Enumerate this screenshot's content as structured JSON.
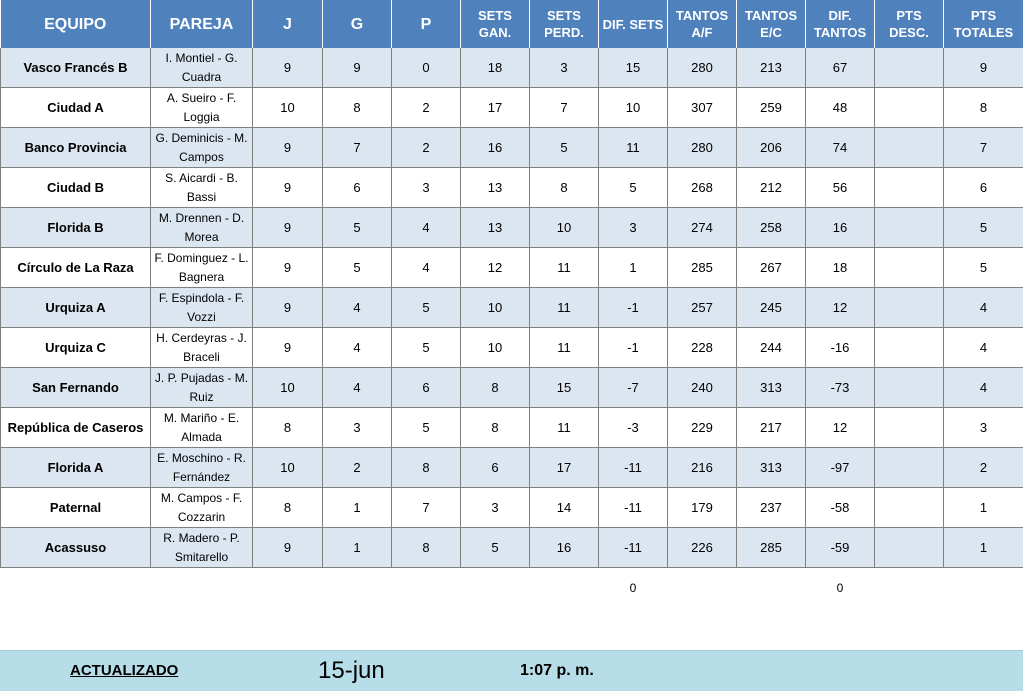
{
  "headers": {
    "equipo": "EQUIPO",
    "pareja": "PAREJA",
    "j": "J",
    "g": "G",
    "p": "P",
    "sets_gan": "SETS GAN.",
    "sets_perd": "SETS PERD.",
    "dif_sets": "DIF. SETS",
    "tantos_af": "TANTOS A/F",
    "tantos_ec": "TANTOS E/C",
    "dif_tantos": "DIF. TANTOS",
    "pts_desc": "PTS DESC.",
    "pts_totales": "PTS TOTALES"
  },
  "rows": [
    {
      "equipo": "Vasco Francés B",
      "pareja": "I. Montiel - G. Cuadra",
      "j": "9",
      "g": "9",
      "p": "0",
      "sets_gan": "18",
      "sets_perd": "3",
      "dif_sets": "15",
      "tantos_af": "280",
      "tantos_ec": "213",
      "dif_tantos": "67",
      "pts_desc": "",
      "pts_totales": "9"
    },
    {
      "equipo": "Ciudad A",
      "pareja": "A. Sueiro - F. Loggia",
      "j": "10",
      "g": "8",
      "p": "2",
      "sets_gan": "17",
      "sets_perd": "7",
      "dif_sets": "10",
      "tantos_af": "307",
      "tantos_ec": "259",
      "dif_tantos": "48",
      "pts_desc": "",
      "pts_totales": "8"
    },
    {
      "equipo": "Banco Provincia",
      "pareja": "G. Deminicis - M. Campos",
      "j": "9",
      "g": "7",
      "p": "2",
      "sets_gan": "16",
      "sets_perd": "5",
      "dif_sets": "11",
      "tantos_af": "280",
      "tantos_ec": "206",
      "dif_tantos": "74",
      "pts_desc": "",
      "pts_totales": "7"
    },
    {
      "equipo": "Ciudad B",
      "pareja": "S. Aicardi - B. Bassi",
      "j": "9",
      "g": "6",
      "p": "3",
      "sets_gan": "13",
      "sets_perd": "8",
      "dif_sets": "5",
      "tantos_af": "268",
      "tantos_ec": "212",
      "dif_tantos": "56",
      "pts_desc": "",
      "pts_totales": "6"
    },
    {
      "equipo": "Florida B",
      "pareja": "M. Drennen - D. Morea",
      "j": "9",
      "g": "5",
      "p": "4",
      "sets_gan": "13",
      "sets_perd": "10",
      "dif_sets": "3",
      "tantos_af": "274",
      "tantos_ec": "258",
      "dif_tantos": "16",
      "pts_desc": "",
      "pts_totales": "5"
    },
    {
      "equipo": "Círculo de La Raza",
      "pareja": "F. Dominguez - L. Bagnera",
      "j": "9",
      "g": "5",
      "p": "4",
      "sets_gan": "12",
      "sets_perd": "11",
      "dif_sets": "1",
      "tantos_af": "285",
      "tantos_ec": "267",
      "dif_tantos": "18",
      "pts_desc": "",
      "pts_totales": "5"
    },
    {
      "equipo": "Urquiza A",
      "pareja": "F. Espindola - F. Vozzi",
      "j": "9",
      "g": "4",
      "p": "5",
      "sets_gan": "10",
      "sets_perd": "11",
      "dif_sets": "-1",
      "tantos_af": "257",
      "tantos_ec": "245",
      "dif_tantos": "12",
      "pts_desc": "",
      "pts_totales": "4"
    },
    {
      "equipo": "Urquiza C",
      "pareja": "H. Cerdeyras - J. Braceli",
      "j": "9",
      "g": "4",
      "p": "5",
      "sets_gan": "10",
      "sets_perd": "11",
      "dif_sets": "-1",
      "tantos_af": "228",
      "tantos_ec": "244",
      "dif_tantos": "-16",
      "pts_desc": "",
      "pts_totales": "4"
    },
    {
      "equipo": "San Fernando",
      "pareja": "J. P. Pujadas - M. Ruiz",
      "j": "10",
      "g": "4",
      "p": "6",
      "sets_gan": "8",
      "sets_perd": "15",
      "dif_sets": "-7",
      "tantos_af": "240",
      "tantos_ec": "313",
      "dif_tantos": "-73",
      "pts_desc": "",
      "pts_totales": "4"
    },
    {
      "equipo": "República de Caseros",
      "pareja": "M. Mariño - E. Almada",
      "j": "8",
      "g": "3",
      "p": "5",
      "sets_gan": "8",
      "sets_perd": "11",
      "dif_sets": "-3",
      "tantos_af": "229",
      "tantos_ec": "217",
      "dif_tantos": "12",
      "pts_desc": "",
      "pts_totales": "3"
    },
    {
      "equipo": "Florida A",
      "pareja": "E. Moschino - R. Fernández",
      "j": "10",
      "g": "2",
      "p": "8",
      "sets_gan": "6",
      "sets_perd": "17",
      "dif_sets": "-11",
      "tantos_af": "216",
      "tantos_ec": "313",
      "dif_tantos": "-97",
      "pts_desc": "",
      "pts_totales": "2"
    },
    {
      "equipo": "Paternal",
      "pareja": "M. Campos - F. Cozzarin",
      "j": "8",
      "g": "1",
      "p": "7",
      "sets_gan": "3",
      "sets_perd": "14",
      "dif_sets": "-11",
      "tantos_af": "179",
      "tantos_ec": "237",
      "dif_tantos": "-58",
      "pts_desc": "",
      "pts_totales": "1"
    },
    {
      "equipo": "Acassuso",
      "pareja": "R. Madero - P. Smitarello",
      "j": "9",
      "g": "1",
      "p": "8",
      "sets_gan": "5",
      "sets_perd": "16",
      "dif_sets": "-11",
      "tantos_af": "226",
      "tantos_ec": "285",
      "dif_tantos": "-59",
      "pts_desc": "",
      "pts_totales": "1"
    }
  ],
  "totals": {
    "dif_sets": "0",
    "dif_tantos": "0"
  },
  "footer": {
    "label": "ACTUALIZADO",
    "date": "15-jun",
    "time": "1:07 p. m."
  },
  "colors": {
    "header_bg": "#4f81bd",
    "row_stripe": "#dce6f1",
    "footer_bg": "#b7dde8"
  }
}
